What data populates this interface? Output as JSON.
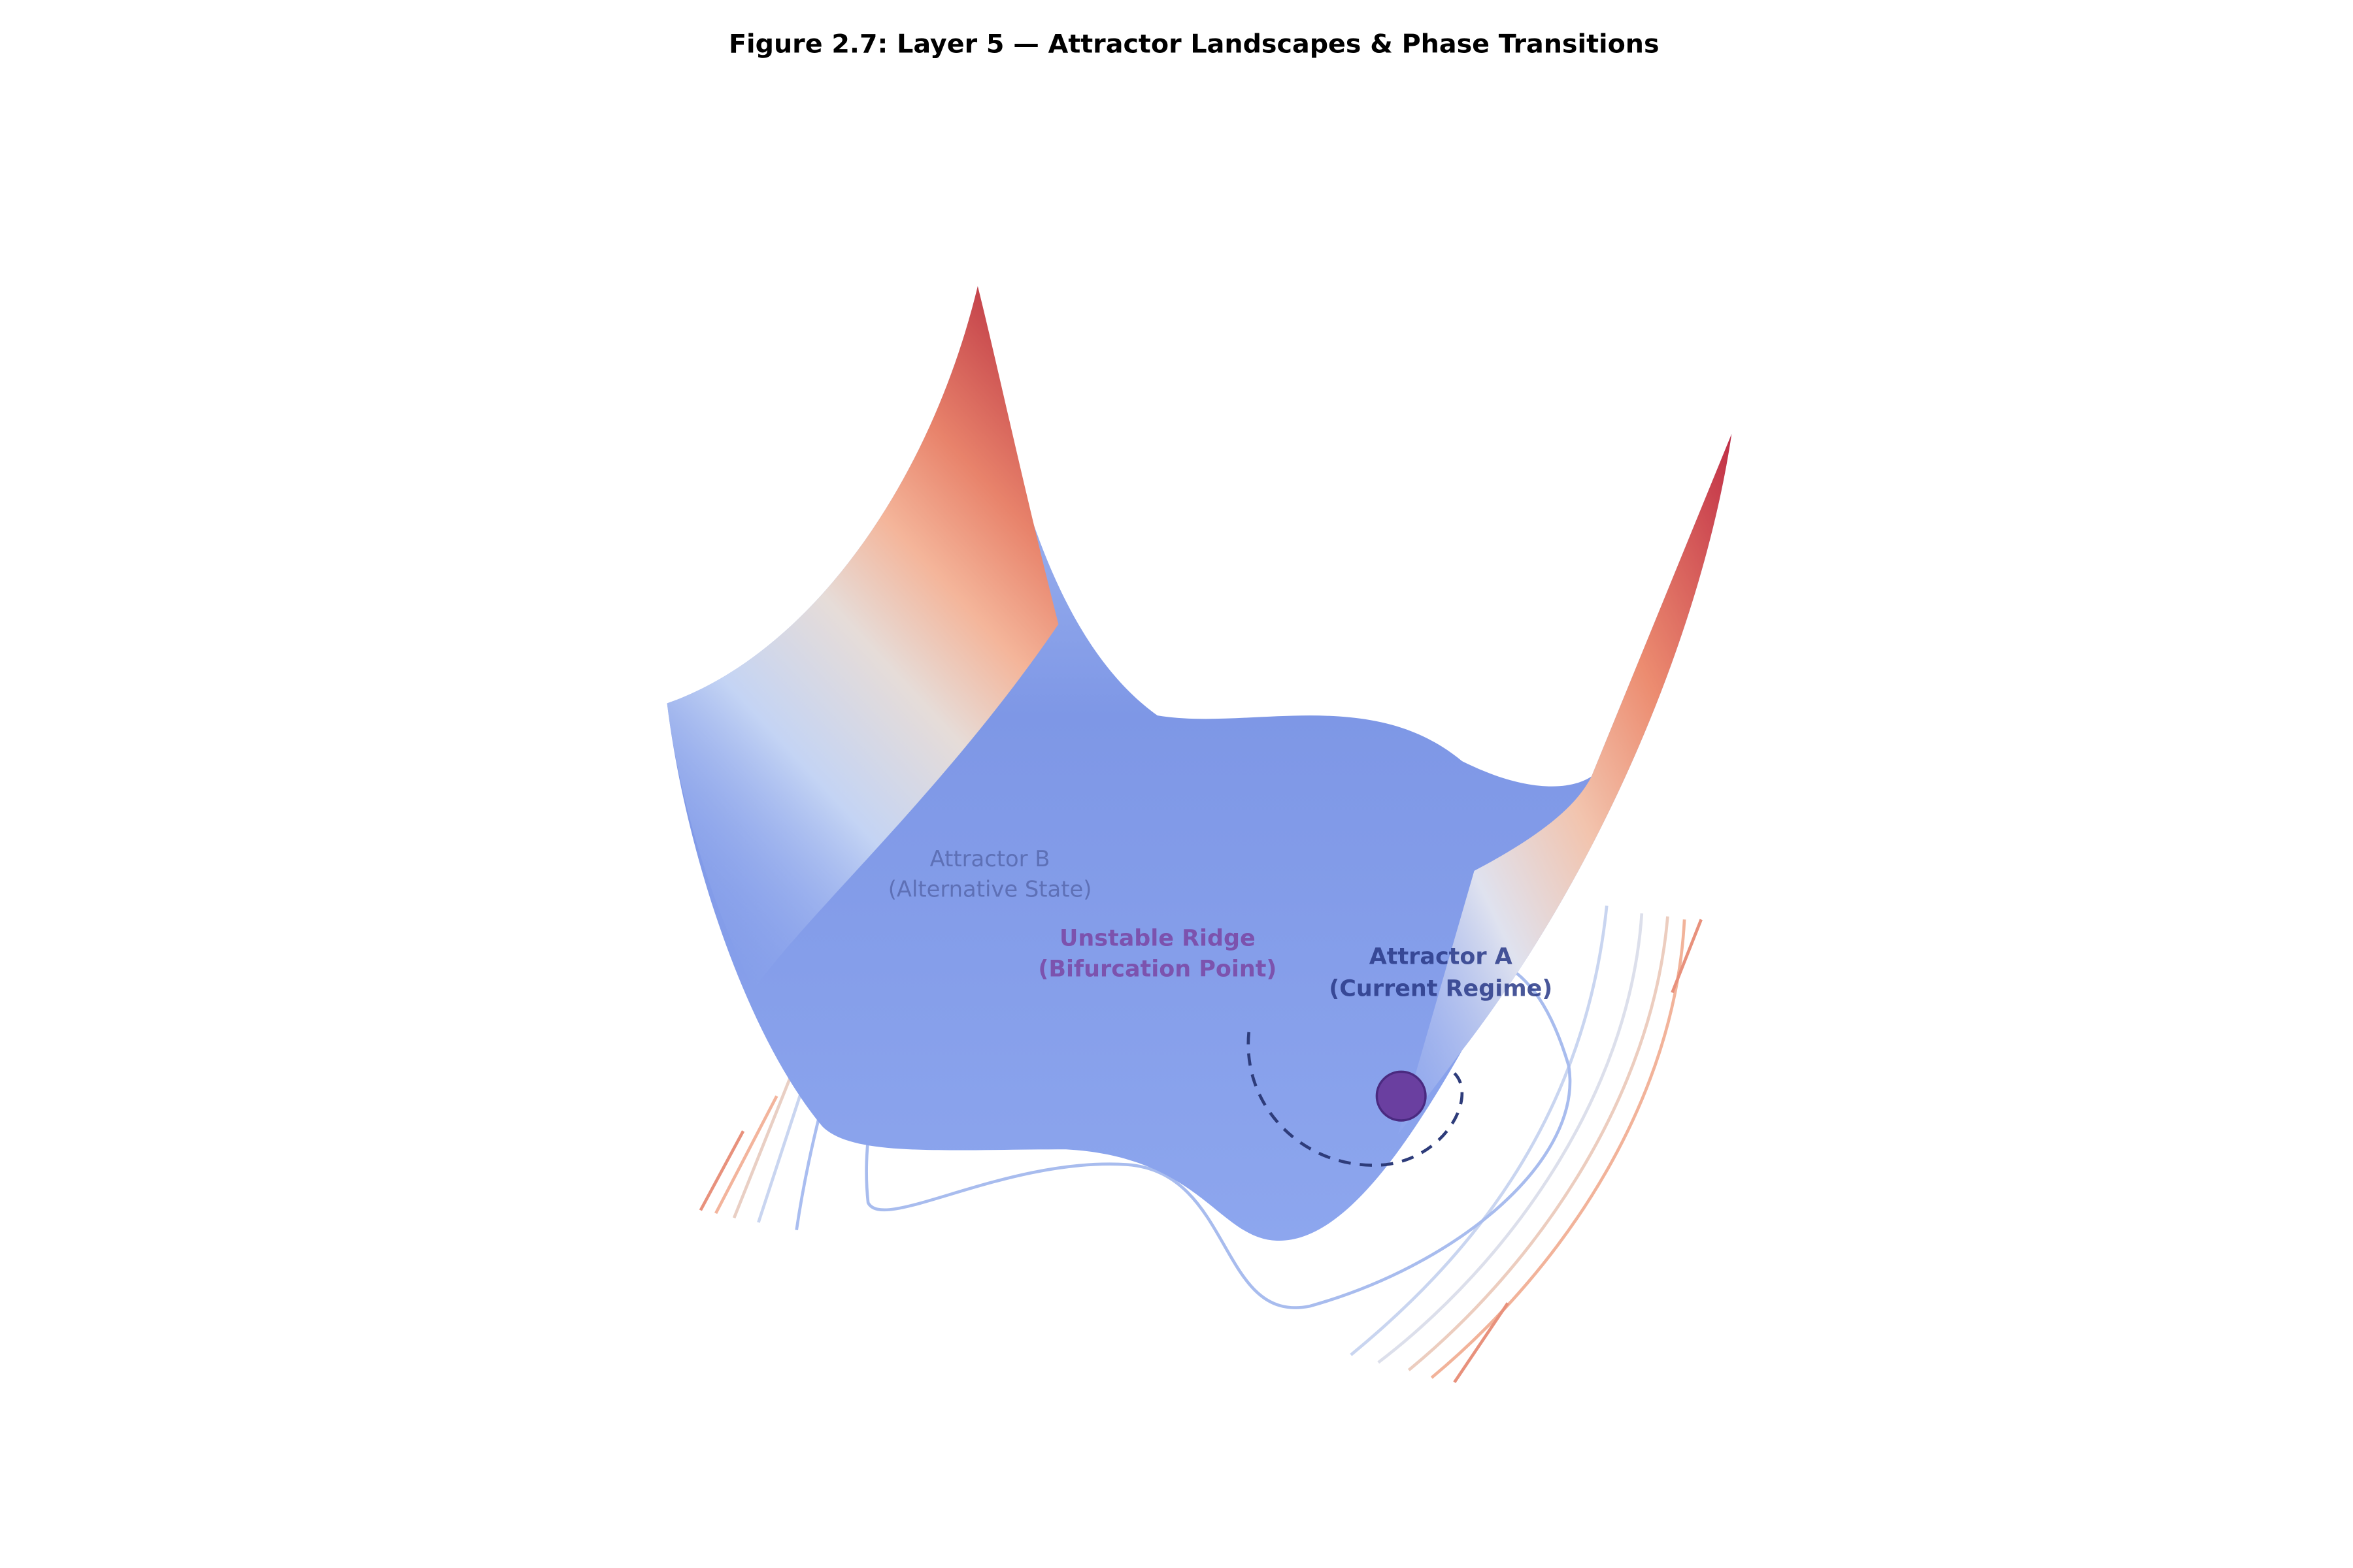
{
  "title": "Figure 2.7: Layer 5 — Attractor Landscapes & Phase Transitions",
  "annotations": [
    {
      "lines": [
        "Attractor B",
        "(Alternative State)"
      ]
    },
    {
      "lines": [
        "Unstable Ridge",
        "(Bifurcation Point)"
      ]
    },
    {
      "lines": [
        "Attractor A",
        "(Current Regime)"
      ]
    }
  ]
}
